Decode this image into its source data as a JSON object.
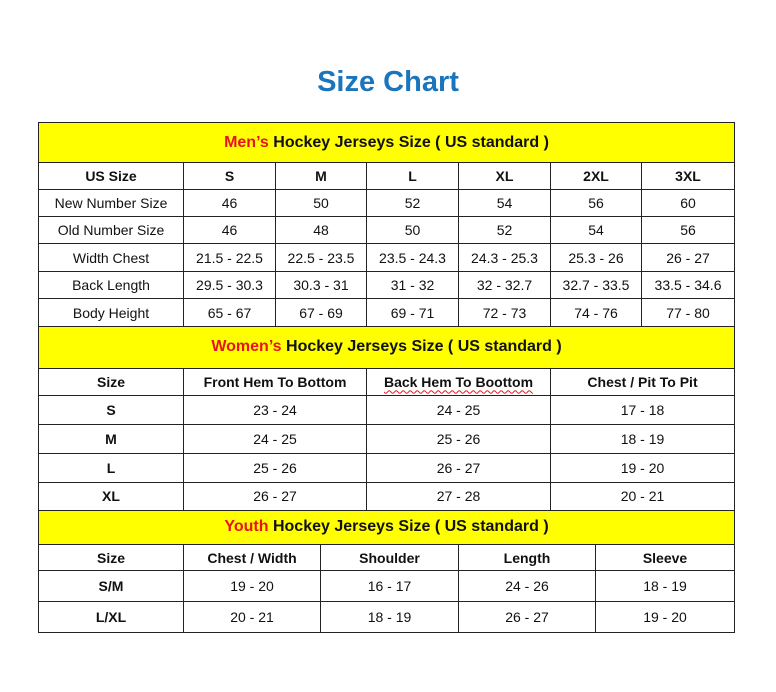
{
  "title": "Size Chart",
  "mens": {
    "heading_highlight": "Men’s",
    "heading_rest": " Hockey Jerseys Size ( US standard )",
    "columns": [
      "US Size",
      "S",
      "M",
      "L",
      "XL",
      "2XL",
      "3XL"
    ],
    "rows": [
      [
        "New Number Size",
        "46",
        "50",
        "52",
        "54",
        "56",
        "60"
      ],
      [
        "Old Number Size",
        "46",
        "48",
        "50",
        "52",
        "54",
        "56"
      ],
      [
        "Width Chest",
        "21.5 - 22.5",
        "22.5 - 23.5",
        "23.5 - 24.3",
        "24.3 - 25.3",
        "25.3 - 26",
        "26 - 27"
      ],
      [
        "Back Length",
        "29.5 - 30.3",
        "30.3 - 31",
        "31 - 32",
        "32 - 32.7",
        "32.7 - 33.5",
        "33.5 - 34.6"
      ],
      [
        "Body Height",
        "65 - 67",
        "67 - 69",
        "69 - 71",
        "72 - 73",
        "74 - 76",
        "77 - 80"
      ]
    ]
  },
  "womens": {
    "heading_highlight": "Women’s",
    "heading_rest": " Hockey Jerseys Size ( US standard )",
    "columns": [
      "Size",
      "Front Hem To Bottom",
      "Back Hem To Boottom",
      "Chest / Pit To Pit"
    ],
    "rows": [
      [
        "S",
        "23 - 24",
        "24 - 25",
        "17 - 18"
      ],
      [
        "M",
        "24 - 25",
        "25 - 26",
        "18 - 19"
      ],
      [
        "L",
        "25 - 26",
        "26 - 27",
        "19 - 20"
      ],
      [
        "XL",
        "26 - 27",
        "27 - 28",
        "20 - 21"
      ]
    ]
  },
  "youth": {
    "heading_highlight": "Youth",
    "heading_rest": " Hockey Jerseys Size ( US standard )",
    "columns": [
      "Size",
      "Chest / Width",
      "Shoulder",
      "Length",
      "Sleeve"
    ],
    "rows": [
      [
        "S/M",
        "19 - 20",
        "16 - 17",
        "24 - 26",
        "18 - 19"
      ],
      [
        "L/XL",
        "20 - 21",
        "18 - 19",
        "26 - 27",
        "19 - 20"
      ]
    ]
  },
  "colors": {
    "title": "#1b75bc",
    "header_bg": "#ffff00",
    "highlight": "#e8141b"
  }
}
